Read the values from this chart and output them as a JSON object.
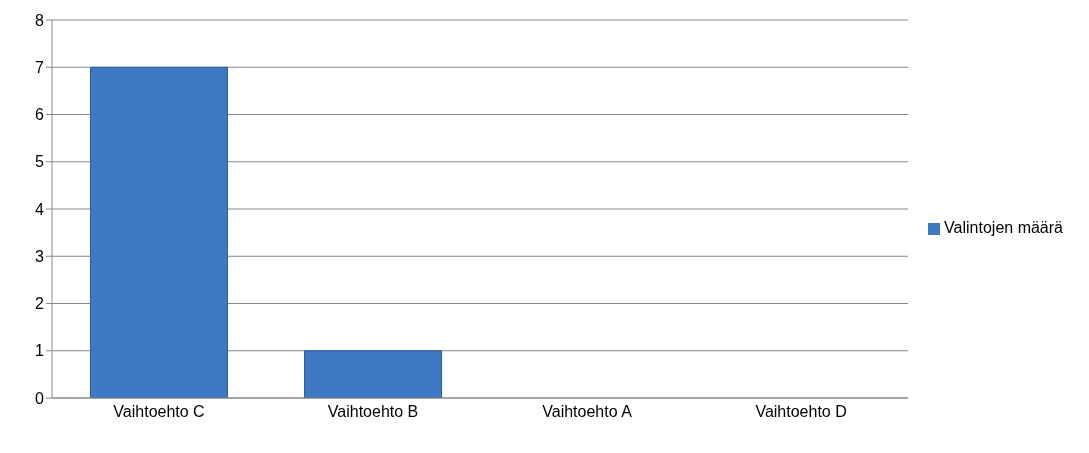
{
  "chart_data": {
    "type": "bar",
    "categories": [
      "Vaihtoehto C",
      "Vaihtoehto B",
      "Vaihtoehto A",
      "Vaihtoehto D"
    ],
    "series": [
      {
        "name": "Valintojen määrä",
        "color": "#3f78c4",
        "values": [
          7,
          1,
          0,
          0
        ]
      }
    ],
    "ylim": [
      0,
      8
    ],
    "yticks": [
      0,
      1,
      2,
      3,
      4,
      5,
      6,
      7,
      8
    ],
    "grid": "y",
    "legend": "right"
  }
}
